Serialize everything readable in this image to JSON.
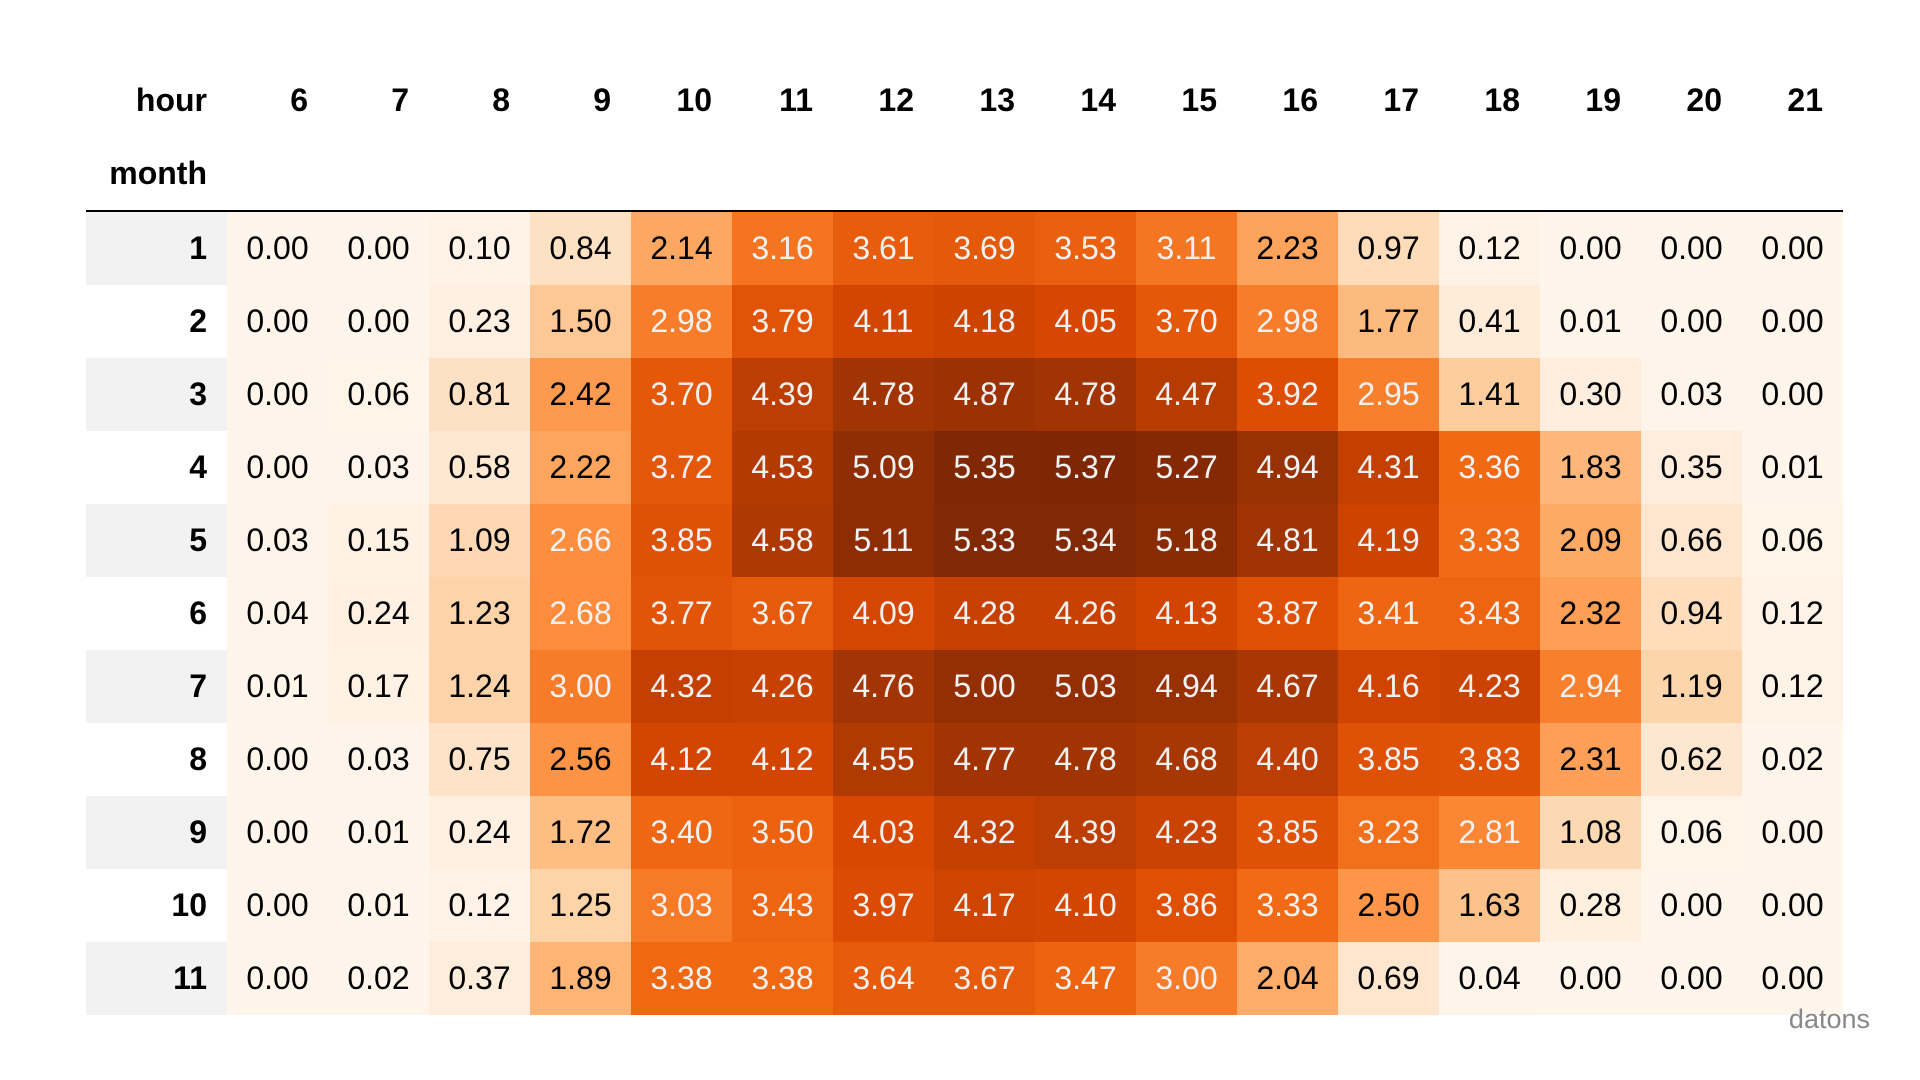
{
  "table": {
    "column_header": "hour",
    "index_name": "month",
    "columns": [
      "6",
      "7",
      "8",
      "9",
      "10",
      "11",
      "12",
      "13",
      "14",
      "15",
      "16",
      "17",
      "18",
      "19",
      "20",
      "21"
    ],
    "index": [
      "1",
      "2",
      "3",
      "4",
      "5",
      "6",
      "7",
      "8",
      "9",
      "10",
      "11"
    ],
    "rows": [
      [
        "0.00",
        "0.00",
        "0.10",
        "0.84",
        "2.14",
        "3.16",
        "3.61",
        "3.69",
        "3.53",
        "3.11",
        "2.23",
        "0.97",
        "0.12",
        "0.00",
        "0.00",
        "0.00"
      ],
      [
        "0.00",
        "0.00",
        "0.23",
        "1.50",
        "2.98",
        "3.79",
        "4.11",
        "4.18",
        "4.05",
        "3.70",
        "2.98",
        "1.77",
        "0.41",
        "0.01",
        "0.00",
        "0.00"
      ],
      [
        "0.00",
        "0.06",
        "0.81",
        "2.42",
        "3.70",
        "4.39",
        "4.78",
        "4.87",
        "4.78",
        "4.47",
        "3.92",
        "2.95",
        "1.41",
        "0.30",
        "0.03",
        "0.00"
      ],
      [
        "0.00",
        "0.03",
        "0.58",
        "2.22",
        "3.72",
        "4.53",
        "5.09",
        "5.35",
        "5.37",
        "5.27",
        "4.94",
        "4.31",
        "3.36",
        "1.83",
        "0.35",
        "0.01"
      ],
      [
        "0.03",
        "0.15",
        "1.09",
        "2.66",
        "3.85",
        "4.58",
        "5.11",
        "5.33",
        "5.34",
        "5.18",
        "4.81",
        "4.19",
        "3.33",
        "2.09",
        "0.66",
        "0.06"
      ],
      [
        "0.04",
        "0.24",
        "1.23",
        "2.68",
        "3.77",
        "3.67",
        "4.09",
        "4.28",
        "4.26",
        "4.13",
        "3.87",
        "3.41",
        "3.43",
        "2.32",
        "0.94",
        "0.12"
      ],
      [
        "0.01",
        "0.17",
        "1.24",
        "3.00",
        "4.32",
        "4.26",
        "4.76",
        "5.00",
        "5.03",
        "4.94",
        "4.67",
        "4.16",
        "4.23",
        "2.94",
        "1.19",
        "0.12"
      ],
      [
        "0.00",
        "0.03",
        "0.75",
        "2.56",
        "4.12",
        "4.12",
        "4.55",
        "4.77",
        "4.78",
        "4.68",
        "4.40",
        "3.85",
        "3.83",
        "2.31",
        "0.62",
        "0.02"
      ],
      [
        "0.00",
        "0.01",
        "0.24",
        "1.72",
        "3.40",
        "3.50",
        "4.03",
        "4.32",
        "4.39",
        "4.23",
        "3.85",
        "3.23",
        "2.81",
        "1.08",
        "0.06",
        "0.00"
      ],
      [
        "0.00",
        "0.01",
        "0.12",
        "1.25",
        "3.03",
        "3.43",
        "3.97",
        "4.17",
        "4.10",
        "3.86",
        "3.33",
        "2.50",
        "1.63",
        "0.28",
        "0.00",
        "0.00"
      ],
      [
        "0.00",
        "0.02",
        "0.37",
        "1.89",
        "3.38",
        "3.38",
        "3.64",
        "3.67",
        "3.47",
        "3.00",
        "2.04",
        "0.69",
        "0.04",
        "0.00",
        "0.00",
        "0.00"
      ]
    ],
    "colormap": [
      "#fff5eb",
      "#fee6ce",
      "#fdd0a2",
      "#fdae6b",
      "#fd8d3c",
      "#f16913",
      "#d94801",
      "#a63603",
      "#7f2704"
    ]
  },
  "watermark": "datons"
}
